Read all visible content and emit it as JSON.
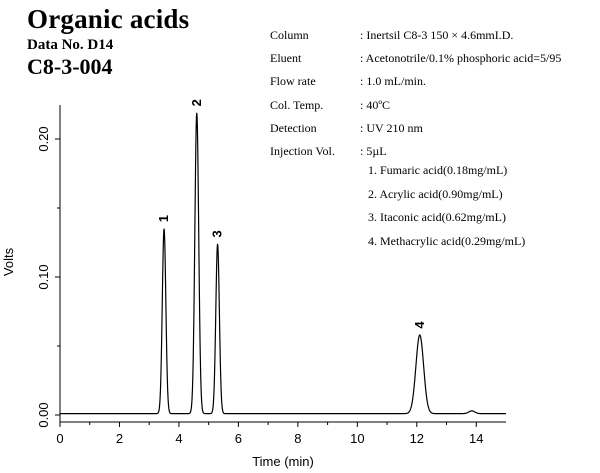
{
  "header": {
    "title": "Organic acids",
    "data_no": "Data No. D14",
    "code": "C8-3-004"
  },
  "conditions": [
    {
      "label": "Column",
      "value": ": Inertsil C8-3   150 × 4.6mmI.D."
    },
    {
      "label": "Eluent",
      "value": ": Acetonotrile/0.1% phosphoric acid=5/95"
    },
    {
      "label": "Flow rate",
      "value": ": 1.0 mL/min."
    },
    {
      "label": "Col. Temp.",
      "value": ": 40ºC"
    },
    {
      "label": "Detection",
      "value": ": UV 210 nm"
    },
    {
      "label": "Injection Vol.",
      "value": ": 5µL"
    }
  ],
  "compounds": [
    "1. Fumaric acid(0.18mg/mL)",
    "2. Acrylic acid(0.90mg/mL)",
    "3. Itaconic acid(0.62mg/mL)",
    "4. Methacrylic acid(0.29mg/mL)"
  ],
  "chart_data": {
    "type": "line",
    "xlabel": "Time (min)",
    "ylabel": "Volts",
    "xlim": [
      0,
      15
    ],
    "ylim": [
      -0.005,
      0.25
    ],
    "xticks": [
      0,
      2,
      4,
      6,
      8,
      10,
      12,
      14
    ],
    "xtick_labels": [
      "0",
      "2",
      "4",
      "6",
      "8",
      "10",
      "12",
      "14"
    ],
    "yticks": [
      0,
      0.1,
      0.2
    ],
    "ytick_labels": [
      "0.00",
      "0.10",
      "0.20"
    ],
    "baseline": 0.001,
    "peaks": [
      {
        "label": "1",
        "time": 3.5,
        "height": 0.134,
        "width": 0.06
      },
      {
        "label": "2",
        "time": 4.6,
        "height": 0.218,
        "width": 0.065
      },
      {
        "label": "3",
        "time": 5.3,
        "height": 0.123,
        "width": 0.06
      },
      {
        "label": "4",
        "time": 12.1,
        "height": 0.057,
        "width": 0.13
      },
      {
        "label": "",
        "time": 13.85,
        "height": 0.002,
        "width": 0.1
      }
    ],
    "grid": false,
    "legend": "none"
  }
}
